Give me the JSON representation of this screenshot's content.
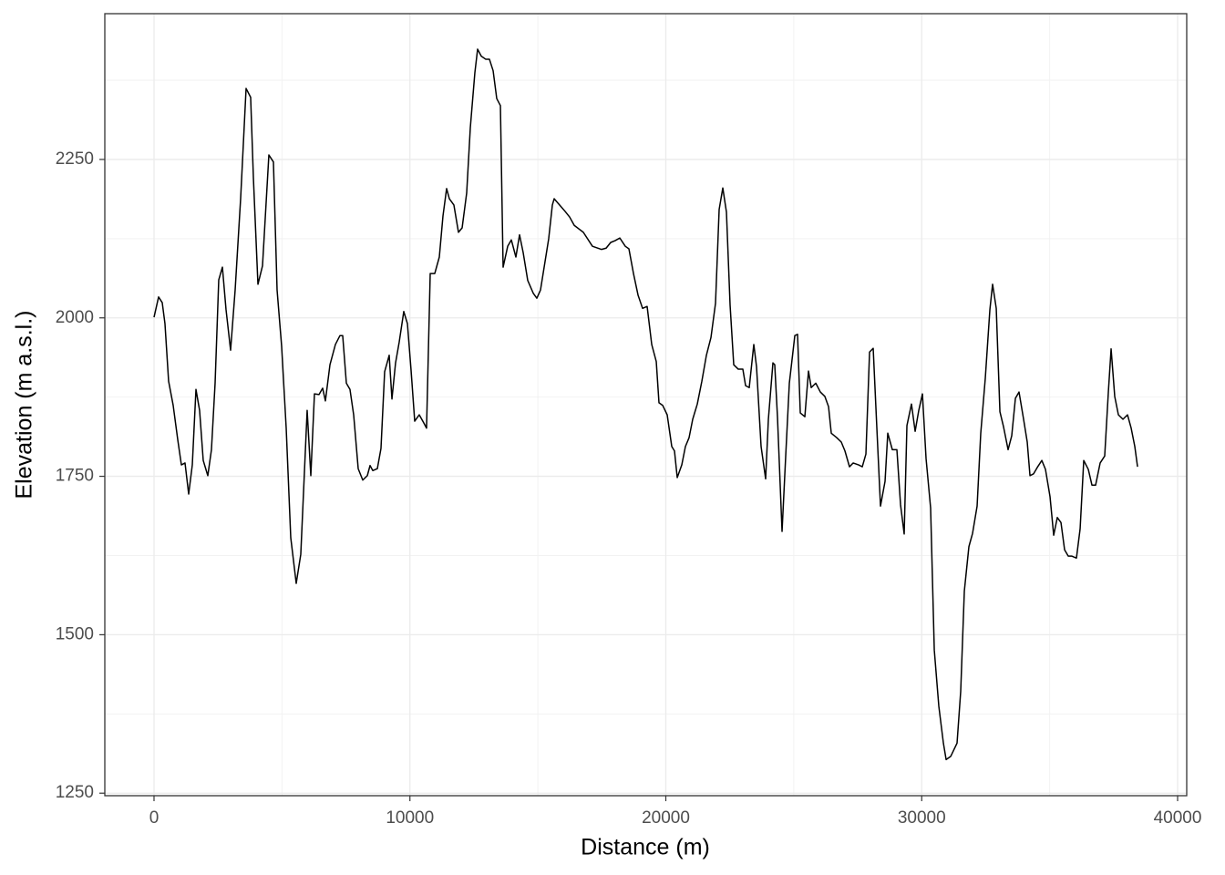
{
  "chart_data": {
    "type": "line",
    "xlabel": "Distance (m)",
    "ylabel": "Elevation (m a.s.l.)",
    "xlim": [
      -1923,
      40356
    ],
    "ylim": [
      1246,
      2480
    ],
    "xticks": [
      0,
      10000,
      20000,
      30000,
      40000
    ],
    "yticks": [
      1250,
      1500,
      1750,
      2000,
      2250
    ],
    "grid": true,
    "color": "#000000",
    "x": [
      0,
      178,
      321,
      427,
      570,
      748,
      926,
      1069,
      1211,
      1354,
      1496,
      1639,
      1781,
      1923,
      2102,
      2244,
      2387,
      2529,
      2672,
      2814,
      2992,
      3170,
      3384,
      3598,
      3776,
      3883,
      4061,
      4239,
      4488,
      4666,
      4809,
      4987,
      5165,
      5343,
      5557,
      5735,
      5984,
      6127,
      6269,
      6447,
      6590,
      6697,
      6875,
      7088,
      7266,
      7373,
      7516,
      7658,
      7801,
      7979,
      8157,
      8335,
      8442,
      8549,
      8727,
      8869,
      9012,
      9190,
      9297,
      9439,
      9582,
      9760,
      9902,
      10044,
      10187,
      10365,
      10544,
      10650,
      10793,
      10971,
      11149,
      11292,
      11434,
      11541,
      11719,
      11897,
      12040,
      12218,
      12360,
      12538,
      12645,
      12788,
      12966,
      13108,
      13251,
      13393,
      13536,
      13642,
      13821,
      13963,
      14141,
      14284,
      14426,
      14604,
      14818,
      14960,
      15103,
      15281,
      15423,
      15566,
      15637,
      15851,
      16065,
      16243,
      16421,
      16777,
      17133,
      17489,
      17668,
      17846,
      18024,
      18202,
      18416,
      18558,
      18736,
      18914,
      19092,
      19270,
      19449,
      19627,
      19733,
      19876,
      20054,
      20232,
      20339,
      20446,
      20624,
      20766,
      20909,
      21051,
      21230,
      21408,
      21586,
      21764,
      21942,
      22084,
      22227,
      22369,
      22512,
      22654,
      22832,
      23010,
      23117,
      23260,
      23438,
      23545,
      23723,
      23901,
      24008,
      24186,
      24257,
      24364,
      24542,
      24685,
      24827,
      25041,
      25148,
      25255,
      25433,
      25575,
      25682,
      25860,
      26038,
      26216,
      26359,
      26466,
      26679,
      26857,
      27000,
      27178,
      27320,
      27534,
      27677,
      27819,
      27962,
      28104,
      28247,
      28389,
      28567,
      28674,
      28852,
      29030,
      29173,
      29315,
      29422,
      29600,
      29743,
      29885,
      30028,
      30170,
      30348,
      30491,
      30669,
      30847,
      30954,
      31132,
      31381,
      31524,
      31666,
      31844,
      31987,
      32165,
      32307,
      32485,
      32664,
      32770,
      32913,
      33056,
      33198,
      33376,
      33518,
      33661,
      33803,
      33981,
      34124,
      34231,
      34373,
      34516,
      34694,
      34836,
      35014,
      35157,
      35299,
      35442,
      35584,
      35727,
      35869,
      36047,
      36190,
      36332,
      36510,
      36653,
      36795,
      36973,
      37151,
      37294,
      37401,
      37543,
      37686,
      37864,
      38042,
      38185,
      38327,
      38434
    ],
    "y": [
      2001,
      2033,
      2024,
      1991,
      1900,
      1862,
      1808,
      1768,
      1771,
      1722,
      1768,
      1887,
      1854,
      1775,
      1751,
      1792,
      1897,
      2060,
      2080,
      2013,
      1949,
      2044,
      2188,
      2362,
      2348,
      2221,
      2053,
      2082,
      2257,
      2246,
      2044,
      1955,
      1826,
      1653,
      1581,
      1627,
      1854,
      1751,
      1880,
      1879,
      1889,
      1869,
      1926,
      1958,
      1972,
      1972,
      1897,
      1887,
      1847,
      1762,
      1744,
      1751,
      1767,
      1759,
      1762,
      1794,
      1915,
      1941,
      1872,
      1929,
      1962,
      2010,
      1991,
      1918,
      1837,
      1847,
      1834,
      1826,
      2070,
      2070,
      2096,
      2161,
      2204,
      2188,
      2178,
      2135,
      2142,
      2197,
      2300,
      2387,
      2424,
      2413,
      2408,
      2408,
      2390,
      2346,
      2335,
      2080,
      2113,
      2123,
      2096,
      2131,
      2103,
      2059,
      2039,
      2031,
      2044,
      2089,
      2125,
      2178,
      2188,
      2178,
      2168,
      2159,
      2146,
      2135,
      2113,
      2108,
      2110,
      2119,
      2122,
      2126,
      2113,
      2109,
      2070,
      2036,
      2015,
      2018,
      1958,
      1931,
      1866,
      1862,
      1847,
      1797,
      1790,
      1748,
      1768,
      1797,
      1811,
      1840,
      1864,
      1900,
      1941,
      1969,
      2023,
      2171,
      2205,
      2167,
      2020,
      1926,
      1919,
      1919,
      1893,
      1890,
      1958,
      1923,
      1797,
      1746,
      1840,
      1929,
      1926,
      1843,
      1663,
      1782,
      1897,
      1972,
      1974,
      1850,
      1844,
      1916,
      1890,
      1897,
      1883,
      1876,
      1860,
      1818,
      1811,
      1804,
      1790,
      1765,
      1771,
      1768,
      1765,
      1785,
      1946,
      1952,
      1826,
      1703,
      1742,
      1818,
      1792,
      1792,
      1705,
      1659,
      1830,
      1864,
      1821,
      1854,
      1880,
      1778,
      1700,
      1476,
      1387,
      1329,
      1303,
      1308,
      1329,
      1411,
      1569,
      1639,
      1660,
      1703,
      1818,
      1905,
      2013,
      2053,
      2015,
      1852,
      1828,
      1792,
      1814,
      1873,
      1883,
      1840,
      1804,
      1751,
      1754,
      1764,
      1775,
      1761,
      1718,
      1657,
      1685,
      1677,
      1634,
      1624,
      1624,
      1621,
      1667,
      1775,
      1761,
      1736,
      1736,
      1771,
      1782,
      1883,
      1951,
      1876,
      1847,
      1840,
      1847,
      1826,
      1797,
      1765
    ]
  }
}
